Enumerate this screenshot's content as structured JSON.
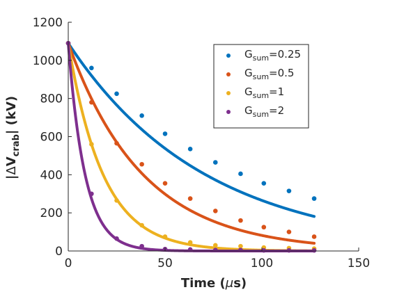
{
  "chart_data": {
    "type": "scatter",
    "xlabel_text": "Time (",
    "xlabel_mu": "μ",
    "xlabel_unit": "s)",
    "ylabel_prefix": "|",
    "ylabel_delta": "Δ",
    "ylabel_v": "V",
    "ylabel_sub": "crab",
    "ylabel_suffix": "| (kV)",
    "xlim": [
      0,
      150
    ],
    "ylim": [
      0,
      1200
    ],
    "xticks": [
      0,
      50,
      100,
      150
    ],
    "yticks": [
      0,
      200,
      400,
      600,
      800,
      1000,
      1200
    ],
    "grid": false,
    "legend_position": "top-right",
    "x_max_data": 127,
    "series": [
      {
        "name": "G",
        "name_sub": "sum",
        "name_value": "=0.25",
        "color": "#0072BD",
        "y0": 1090,
        "tau": 70.8
      },
      {
        "name": "G",
        "name_sub": "sum",
        "name_value": "=0.5",
        "color": "#D95319",
        "y0": 1090,
        "tau": 38.6
      },
      {
        "name": "G",
        "name_sub": "sum",
        "name_value": "=1",
        "color": "#EDB120",
        "y0": 1090,
        "tau": 18.0
      },
      {
        "name": "G",
        "name_sub": "sum",
        "name_value": "=2",
        "color": "#7E2F8E",
        "y0": 1090,
        "tau": 8.7
      }
    ],
    "offsets": [
      0,
      0,
      0,
      0
    ],
    "noise_points": [
      {
        "series": 0,
        "values": [
          [
            0,
            1090
          ],
          [
            12,
            960
          ],
          [
            25,
            825
          ],
          [
            38,
            710
          ],
          [
            50,
            615
          ],
          [
            63,
            535
          ],
          [
            76,
            465
          ],
          [
            89,
            405
          ],
          [
            101,
            355
          ],
          [
            114,
            315
          ],
          [
            127,
            275
          ]
        ]
      },
      {
        "series": 1,
        "values": [
          [
            0,
            1090
          ],
          [
            12,
            780
          ],
          [
            25,
            565
          ],
          [
            38,
            455
          ],
          [
            50,
            355
          ],
          [
            63,
            275
          ],
          [
            76,
            210
          ],
          [
            89,
            160
          ],
          [
            101,
            125
          ],
          [
            114,
            100
          ],
          [
            127,
            75
          ]
        ]
      },
      {
        "series": 2,
        "values": [
          [
            0,
            1090
          ],
          [
            12,
            560
          ],
          [
            25,
            265
          ],
          [
            38,
            135
          ],
          [
            50,
            75
          ],
          [
            63,
            45
          ],
          [
            76,
            30
          ],
          [
            89,
            25
          ],
          [
            101,
            18
          ],
          [
            114,
            15
          ],
          [
            127,
            12
          ]
        ]
      },
      {
        "series": 3,
        "values": [
          [
            0,
            1090
          ],
          [
            12,
            300
          ],
          [
            25,
            65
          ],
          [
            38,
            25
          ],
          [
            50,
            10
          ],
          [
            63,
            8
          ],
          [
            76,
            5
          ],
          [
            89,
            5
          ],
          [
            101,
            3
          ],
          [
            114,
            3
          ],
          [
            127,
            3
          ]
        ]
      }
    ]
  }
}
